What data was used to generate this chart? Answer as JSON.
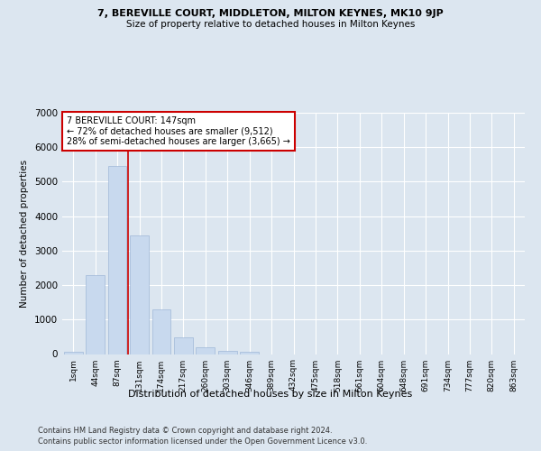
{
  "title1": "7, BEREVILLE COURT, MIDDLETON, MILTON KEYNES, MK10 9JP",
  "title2": "Size of property relative to detached houses in Milton Keynes",
  "xlabel": "Distribution of detached houses by size in Milton Keynes",
  "ylabel": "Number of detached properties",
  "footer1": "Contains HM Land Registry data © Crown copyright and database right 2024.",
  "footer2": "Contains public sector information licensed under the Open Government Licence v3.0.",
  "bar_labels": [
    "1sqm",
    "44sqm",
    "87sqm",
    "131sqm",
    "174sqm",
    "217sqm",
    "260sqm",
    "303sqm",
    "346sqm",
    "389sqm",
    "432sqm",
    "475sqm",
    "518sqm",
    "561sqm",
    "604sqm",
    "648sqm",
    "691sqm",
    "734sqm",
    "777sqm",
    "820sqm",
    "863sqm"
  ],
  "bar_values": [
    75,
    2300,
    5450,
    3430,
    1300,
    480,
    185,
    100,
    60,
    0,
    0,
    0,
    0,
    0,
    0,
    0,
    0,
    0,
    0,
    0,
    0
  ],
  "bar_color": "#c8d9ee",
  "bar_edge_color": "#a0b8d8",
  "vline_x": 2.5,
  "vline_color": "#cc0000",
  "annotation_title": "7 BEREVILLE COURT: 147sqm",
  "annotation_line1": "← 72% of detached houses are smaller (9,512)",
  "annotation_line2": "28% of semi-detached houses are larger (3,665) →",
  "annotation_box_color": "#ffffff",
  "annotation_border_color": "#cc0000",
  "ylim": [
    0,
    7000
  ],
  "yticks": [
    0,
    1000,
    2000,
    3000,
    4000,
    5000,
    6000,
    7000
  ],
  "background_color": "#dce6f0",
  "grid_color": "#ffffff"
}
